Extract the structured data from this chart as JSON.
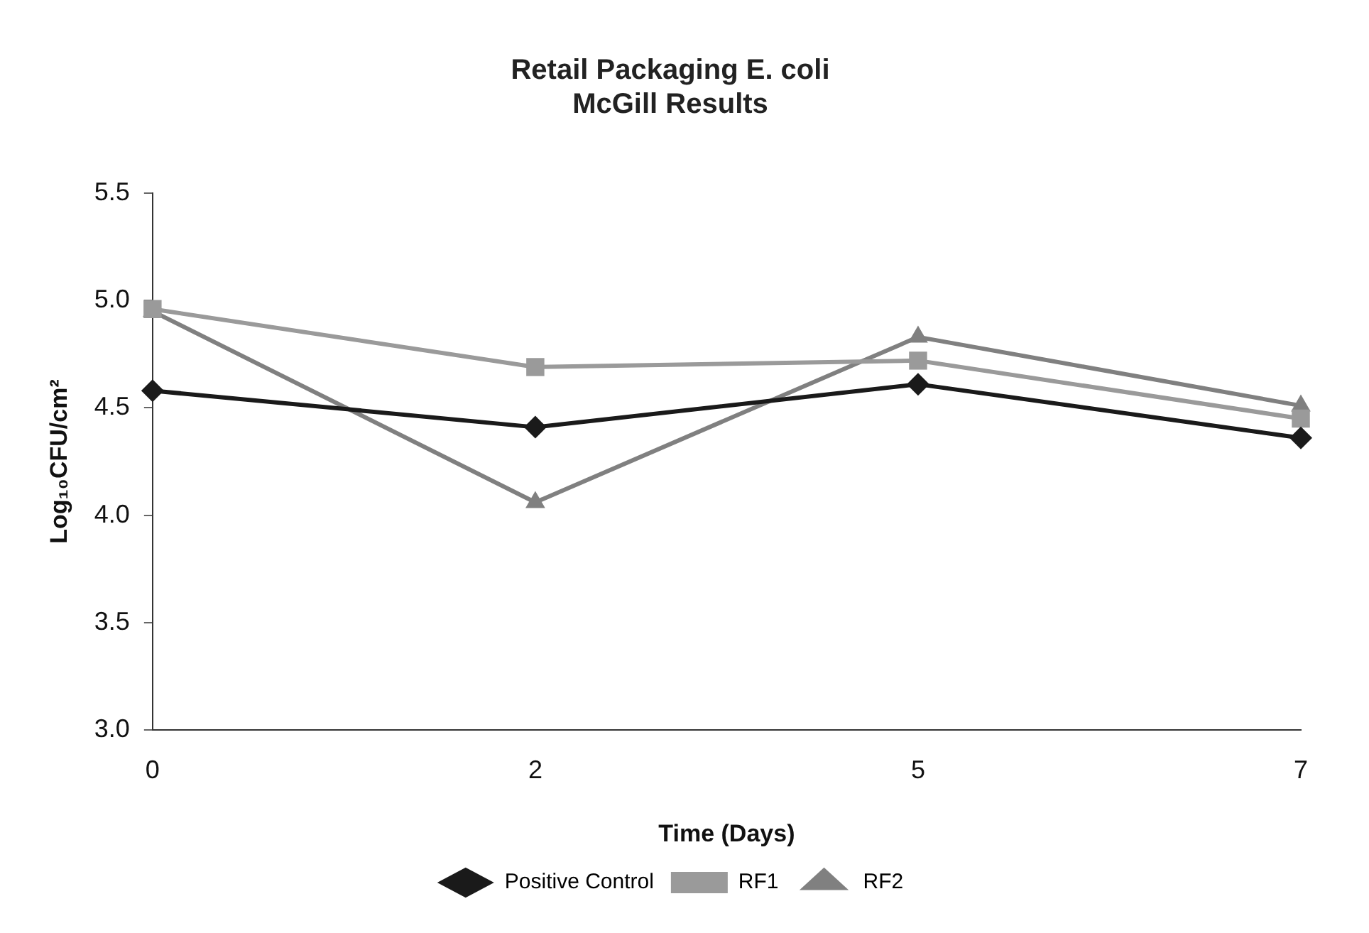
{
  "chart_data": {
    "type": "line",
    "title": "Retail Packaging E. coli\nMcGill Results",
    "xlabel": "Time (Days)",
    "ylabel": "Log₁₀CFU/cm²",
    "categories": [
      "0",
      "2",
      "5",
      "7"
    ],
    "series": [
      {
        "name": "Positive Control",
        "color": "#1a1a1a",
        "marker": "diamond",
        "values": [
          4.58,
          4.41,
          4.61,
          4.36
        ]
      },
      {
        "name": "RF1",
        "color": "#9a9a9a",
        "marker": "square",
        "values": [
          4.96,
          4.69,
          4.72,
          4.45
        ]
      },
      {
        "name": "RF2",
        "color": "#808080",
        "marker": "triangle",
        "values": [
          4.95,
          4.06,
          4.83,
          4.51
        ]
      }
    ],
    "ylim": [
      3.0,
      5.5
    ],
    "yticks": [
      {
        "value": 3.0,
        "label": "3.0"
      },
      {
        "value": 3.5,
        "label": "3.5"
      },
      {
        "value": 4.0,
        "label": "4.0"
      },
      {
        "value": 4.5,
        "label": "4.5"
      },
      {
        "value": 5.0,
        "label": "5.0"
      },
      {
        "value": 5.5,
        "label": "5.5"
      }
    ],
    "grid": false,
    "legend": "bottom"
  }
}
